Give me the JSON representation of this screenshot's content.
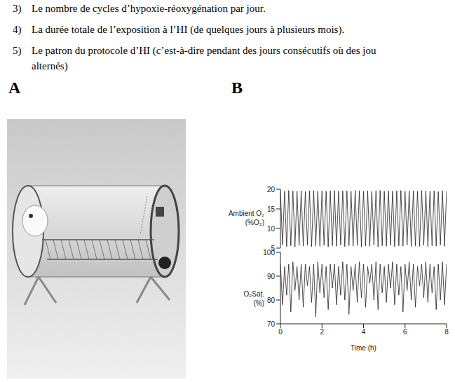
{
  "text_lines": [
    {
      "number": "3)",
      "text": "Le nombre de cycles d’hypoxie-réoxygénation par jour."
    },
    {
      "number": "4)",
      "text": "La durée totale de l’exposition à l’HI (de quelques jours à plusieurs mois)."
    },
    {
      "number": "5)",
      "text": "Le patron du protocole d’HI (c’est-à-dire pendant des jours consécutifs où des jou",
      "continuation": "alternés)"
    }
  ],
  "panel_labels": [
    "A",
    "B"
  ],
  "chart_data": [
    {
      "type": "line",
      "y_label": [
        "Ambient O₂",
        "(%O₂)"
      ],
      "tick_labels": "y",
      "xlim": [
        0,
        8
      ],
      "xticks": [
        0,
        2,
        4,
        6,
        8
      ],
      "ylim": [
        5,
        20
      ],
      "yticks": [
        5,
        10,
        15,
        20
      ],
      "x": [
        0,
        0.1,
        0.2,
        0.3,
        0.4,
        0.5,
        0.6,
        0.7,
        0.8,
        0.9,
        1,
        1.1,
        1.2,
        1.3,
        1.4,
        1.5,
        1.6,
        1.7,
        1.8,
        1.9,
        2,
        2.1,
        2.2,
        2.3,
        2.4,
        2.5,
        2.6,
        2.7,
        2.8,
        2.9,
        3,
        3.1,
        3.2,
        3.3,
        3.4,
        3.5,
        3.6,
        3.7,
        3.8,
        3.9,
        4,
        4.1,
        4.2,
        4.3,
        4.4,
        4.5,
        4.6,
        4.7,
        4.8,
        4.9,
        5,
        5.1,
        5.2,
        5.3,
        5.4,
        5.5,
        5.6,
        5.7,
        5.8,
        5.9,
        6,
        6.1,
        6.2,
        6.3,
        6.4,
        6.5,
        6.6,
        6.7,
        6.8,
        6.9,
        7,
        7.1,
        7.2,
        7.3,
        7.4,
        7.5,
        7.6,
        7.7,
        7.8,
        7.9,
        8
      ],
      "color": "#222222",
      "values": [
        19.6,
        5.8,
        19.5,
        5.4,
        19.7,
        5.6,
        19.6,
        5.3,
        19.5,
        5.7,
        19.6,
        5.5,
        19.4,
        5.8,
        19.6,
        5.4,
        19.7,
        5.6,
        19.5,
        5.5,
        19.6,
        5.7,
        19.5,
        5.3,
        19.6,
        5.6,
        19.7,
        5.5,
        19.5,
        5.8,
        19.6,
        5.4,
        19.6,
        5.6,
        19.5,
        5.5,
        19.7,
        5.7,
        19.6,
        5.4,
        19.5,
        5.6,
        19.6,
        5.5,
        19.4,
        5.8,
        19.6,
        5.3,
        19.7,
        5.6,
        19.5,
        5.5,
        19.6,
        5.7,
        19.5,
        5.4,
        19.6,
        5.6,
        19.7,
        5.5,
        19.5,
        5.8,
        19.6,
        5.4,
        19.6,
        5.6,
        19.5,
        5.5,
        19.7,
        5.7,
        19.6,
        5.4,
        19.5,
        5.6,
        19.6,
        5.5,
        19.4,
        5.8,
        19.6,
        5.5,
        19.6
      ]
    },
    {
      "type": "line",
      "y_label": [
        "O₂Sat.",
        "(%)"
      ],
      "x_label": "Time (h)",
      "xlim": [
        0,
        8
      ],
      "xticks": [
        0,
        2,
        4,
        6,
        8
      ],
      "ylim": [
        70,
        100
      ],
      "yticks": [
        70,
        80,
        90,
        100
      ],
      "x": [
        0,
        0.1,
        0.2,
        0.3,
        0.4,
        0.5,
        0.6,
        0.7,
        0.8,
        0.9,
        1,
        1.1,
        1.2,
        1.3,
        1.4,
        1.5,
        1.6,
        1.7,
        1.8,
        1.9,
        2,
        2.1,
        2.2,
        2.3,
        2.4,
        2.5,
        2.6,
        2.7,
        2.8,
        2.9,
        3,
        3.1,
        3.2,
        3.3,
        3.4,
        3.5,
        3.6,
        3.7,
        3.8,
        3.9,
        4,
        4.1,
        4.2,
        4.3,
        4.4,
        4.5,
        4.6,
        4.7,
        4.8,
        4.9,
        5,
        5.1,
        5.2,
        5.3,
        5.4,
        5.5,
        5.6,
        5.7,
        5.8,
        5.9,
        6,
        6.1,
        6.2,
        6.3,
        6.4,
        6.5,
        6.6,
        6.7,
        6.8,
        6.9,
        7,
        7.1,
        7.2,
        7.3,
        7.4,
        7.5,
        7.6,
        7.7,
        7.8,
        7.9,
        8
      ],
      "color": "#222222",
      "values": [
        95,
        78,
        94,
        82,
        95,
        75,
        96,
        84,
        94,
        80,
        95,
        77,
        95,
        86,
        94,
        79,
        95,
        73,
        96,
        83,
        95,
        81,
        94,
        76,
        95,
        85,
        95,
        78,
        94,
        82,
        96,
        80,
        95,
        74,
        94,
        84,
        95,
        79,
        96,
        81,
        95,
        77,
        94,
        87,
        95,
        80,
        96,
        76,
        95,
        83,
        94,
        79,
        95,
        85,
        96,
        78,
        95,
        82,
        94,
        75,
        95,
        84,
        96,
        80,
        95,
        77,
        94,
        86,
        95,
        81,
        96,
        79,
        95,
        83,
        94,
        76,
        95,
        80,
        96,
        78,
        95
      ]
    }
  ]
}
